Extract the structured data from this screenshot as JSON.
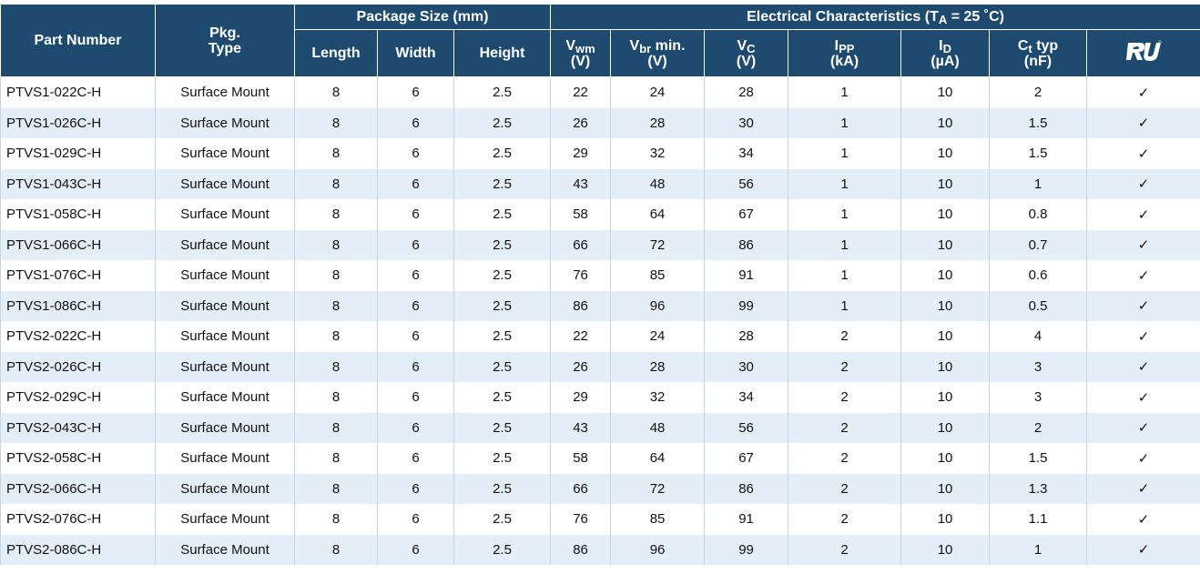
{
  "header": {
    "part_number": "Part Number",
    "pkg_type": [
      "Pkg.",
      "Type"
    ],
    "package_size": "Package Size (mm)",
    "electrical": {
      "text": "Electrical Characteristics (T",
      "sub": "A",
      "after": " = 25 ˚C)"
    },
    "columns": [
      {
        "text": "Length"
      },
      {
        "text": "Width"
      },
      {
        "text": "Height"
      },
      {
        "symbol": "V",
        "sub": "wm",
        "unit": "(V)"
      },
      {
        "symbol": "V",
        "sub": "br",
        "after": " min.",
        "unit": "(V)"
      },
      {
        "symbol": "V",
        "sub": "C",
        "unit": "(V)"
      },
      {
        "symbol": "I",
        "sub": "PP",
        "unit": "(kA)"
      },
      {
        "symbol": "I",
        "sub": "D",
        "unit": "(µA)"
      },
      {
        "symbol": "C",
        "sub": "t",
        "after": " typ",
        "unit": "(nF)"
      }
    ]
  },
  "table": {
    "rows": [
      [
        "PTVS1-022C-H",
        "Surface Mount",
        8,
        6,
        2.5,
        22,
        24,
        28,
        1,
        10,
        2,
        "✓"
      ],
      [
        "PTVS1-026C-H",
        "Surface Mount",
        8,
        6,
        2.5,
        26,
        28,
        30,
        1,
        10,
        1.5,
        "✓"
      ],
      [
        "PTVS1-029C-H",
        "Surface Mount",
        8,
        6,
        2.5,
        29,
        32,
        34,
        1,
        10,
        1.5,
        "✓"
      ],
      [
        "PTVS1-043C-H",
        "Surface Mount",
        8,
        6,
        2.5,
        43,
        48,
        56,
        1,
        10,
        1,
        "✓"
      ],
      [
        "PTVS1-058C-H",
        "Surface Mount",
        8,
        6,
        2.5,
        58,
        64,
        67,
        1,
        10,
        0.8,
        "✓"
      ],
      [
        "PTVS1-066C-H",
        "Surface Mount",
        8,
        6,
        2.5,
        66,
        72,
        86,
        1,
        10,
        0.7,
        "✓"
      ],
      [
        "PTVS1-076C-H",
        "Surface Mount",
        8,
        6,
        2.5,
        76,
        85,
        91,
        1,
        10,
        0.6,
        "✓"
      ],
      [
        "PTVS1-086C-H",
        "Surface Mount",
        8,
        6,
        2.5,
        86,
        96,
        99,
        1,
        10,
        0.5,
        "✓"
      ],
      [
        "PTVS2-022C-H",
        "Surface Mount",
        8,
        6,
        2.5,
        22,
        24,
        28,
        2,
        10,
        4,
        "✓"
      ],
      [
        "PTVS2-026C-H",
        "Surface Mount",
        8,
        6,
        2.5,
        26,
        28,
        30,
        2,
        10,
        3,
        "✓"
      ],
      [
        "PTVS2-029C-H",
        "Surface Mount",
        8,
        6,
        2.5,
        29,
        32,
        34,
        2,
        10,
        3,
        "✓"
      ],
      [
        "PTVS2-043C-H",
        "Surface Mount",
        8,
        6,
        2.5,
        43,
        48,
        56,
        2,
        10,
        2,
        "✓"
      ],
      [
        "PTVS2-058C-H",
        "Surface Mount",
        8,
        6,
        2.5,
        58,
        64,
        67,
        2,
        10,
        1.5,
        "✓"
      ],
      [
        "PTVS2-066C-H",
        "Surface Mount",
        8,
        6,
        2.5,
        66,
        72,
        86,
        2,
        10,
        1.3,
        "✓"
      ],
      [
        "PTVS2-076C-H",
        "Surface Mount",
        8,
        6,
        2.5,
        76,
        85,
        91,
        2,
        10,
        1.1,
        "✓"
      ],
      [
        "PTVS2-086C-H",
        "Surface Mount",
        8,
        6,
        2.5,
        86,
        96,
        99,
        2,
        10,
        1,
        "✓"
      ]
    ]
  }
}
